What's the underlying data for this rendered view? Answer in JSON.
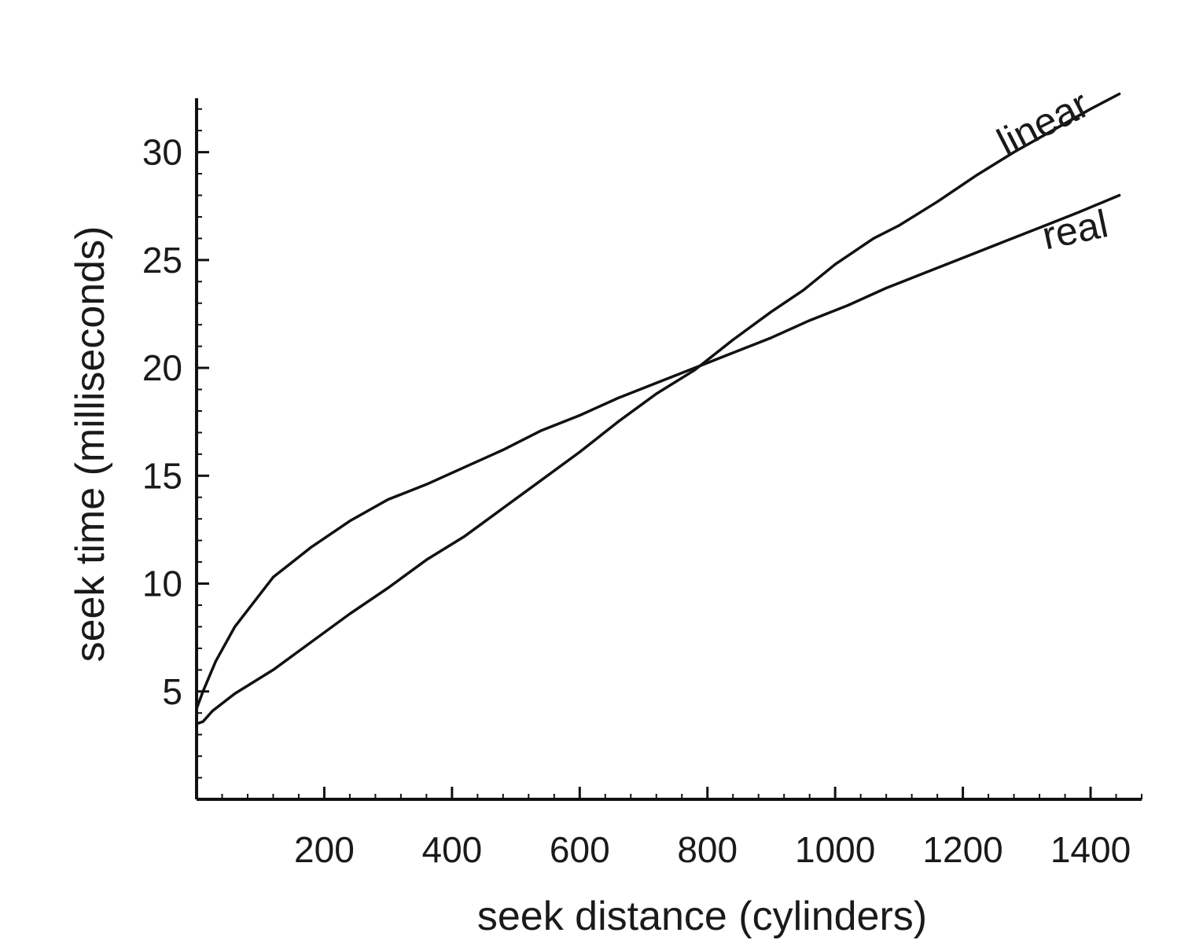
{
  "chart_data": {
    "type": "line",
    "xlabel": "seek distance (cylinders)",
    "ylabel": "seek time (milliseconds)",
    "xlim": [
      0,
      1480
    ],
    "ylim": [
      0,
      32.5
    ],
    "x_ticks": [
      200,
      400,
      600,
      800,
      1000,
      1200,
      1400
    ],
    "y_ticks": [
      5,
      10,
      15,
      20,
      25,
      30
    ],
    "grid": false,
    "series": [
      {
        "name": "linear",
        "x": [
          0,
          10,
          25,
          60,
          120,
          180,
          240,
          300,
          360,
          420,
          480,
          540,
          600,
          660,
          720,
          780,
          840,
          900,
          950,
          1000,
          1060,
          1100,
          1160,
          1220,
          1280,
          1340,
          1400,
          1445
        ],
        "y": [
          3.5,
          3.6,
          4.1,
          4.9,
          6.0,
          7.3,
          8.6,
          9.8,
          11.1,
          12.2,
          13.5,
          14.8,
          16.1,
          17.5,
          18.8,
          19.9,
          21.3,
          22.6,
          23.6,
          24.8,
          26.0,
          26.6,
          27.7,
          28.9,
          30.0,
          31.0,
          32.0,
          32.7
        ]
      },
      {
        "name": "real",
        "x": [
          0,
          10,
          30,
          60,
          120,
          180,
          240,
          300,
          360,
          420,
          480,
          540,
          600,
          660,
          720,
          780,
          840,
          900,
          960,
          1020,
          1080,
          1140,
          1200,
          1260,
          1320,
          1380,
          1445
        ],
        "y": [
          4.2,
          5.0,
          6.4,
          8.0,
          10.3,
          11.7,
          12.9,
          13.9,
          14.6,
          15.4,
          16.2,
          17.1,
          17.8,
          18.6,
          19.3,
          20.0,
          20.7,
          21.4,
          22.2,
          22.9,
          23.7,
          24.4,
          25.1,
          25.8,
          26.5,
          27.2,
          28.0
        ]
      }
    ],
    "annotations": [
      {
        "text": "linear",
        "x": 1335,
        "y": 30.8,
        "angle": -27
      },
      {
        "text": "real",
        "x": 1380,
        "y": 25.8,
        "angle": -12
      }
    ]
  }
}
